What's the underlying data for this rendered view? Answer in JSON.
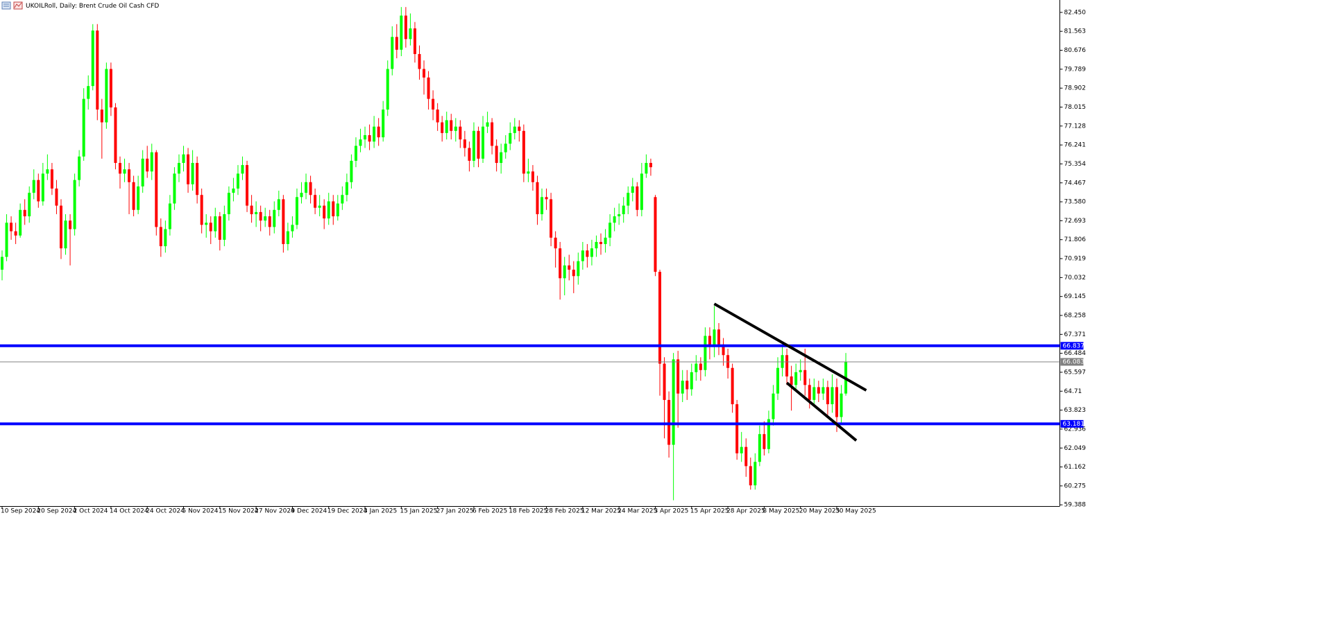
{
  "chart_data": {
    "type": "candlestick",
    "title": "UKOILRoll, Daily:  Brent Crude Oil Cash CFD",
    "up_color": "#00ff00",
    "down_color": "#ff0000",
    "ylim": [
      59.33,
      83.03
    ],
    "yticks": [
      {
        "value": 82.45,
        "label": "82.450"
      },
      81.563,
      80.676,
      79.789,
      78.902,
      78.015,
      77.128,
      76.241,
      75.354,
      74.467,
      {
        "value": 73.58,
        "label": "73.580"
      },
      72.693,
      71.806,
      70.919,
      70.032,
      69.145,
      68.258,
      67.371,
      66.484,
      65.597,
      64.71,
      63.823,
      62.936,
      62.049,
      61.162,
      60.275,
      59.388
    ],
    "categories": [
      "10 Sep 2024",
      null,
      null,
      null,
      null,
      null,
      null,
      null,
      "20 Sep 2024",
      null,
      null,
      null,
      null,
      null,
      null,
      null,
      "2 Oct 2024",
      null,
      null,
      null,
      null,
      null,
      null,
      null,
      "14 Oct 2024",
      null,
      null,
      null,
      null,
      null,
      null,
      null,
      "24 Oct 2024",
      null,
      null,
      null,
      null,
      null,
      null,
      null,
      "5 Nov 2024",
      null,
      null,
      null,
      null,
      null,
      null,
      null,
      "15 Nov 2024",
      null,
      null,
      null,
      null,
      null,
      null,
      null,
      "27 Nov 2024",
      null,
      null,
      null,
      null,
      null,
      null,
      null,
      "9 Dec 2024",
      null,
      null,
      null,
      null,
      null,
      null,
      null,
      "19 Dec 2024",
      null,
      null,
      null,
      null,
      null,
      null,
      null,
      "3 Jan 2025",
      null,
      null,
      null,
      null,
      null,
      null,
      null,
      "15 Jan 2025",
      null,
      null,
      null,
      null,
      null,
      null,
      null,
      "27 Jan 2025",
      null,
      null,
      null,
      null,
      null,
      null,
      null,
      "6 Feb 2025",
      null,
      null,
      null,
      null,
      null,
      null,
      null,
      "18 Feb 2025",
      null,
      null,
      null,
      null,
      null,
      null,
      null,
      "28 Feb 2025",
      null,
      null,
      null,
      null,
      null,
      null,
      null,
      "12 Mar 2025",
      null,
      null,
      null,
      null,
      null,
      null,
      null,
      "24 Mar 2025",
      null,
      null,
      null,
      null,
      null,
      null,
      null,
      "3 Apr 2025",
      null,
      null,
      null,
      null,
      null,
      null,
      null,
      "15 Apr 2025",
      null,
      null,
      null,
      null,
      null,
      null,
      null,
      "28 Apr 2025",
      null,
      null,
      null,
      null,
      null,
      null,
      null,
      "8 May 2025",
      null,
      null,
      null,
      null,
      null,
      null,
      null,
      "20 May 2025",
      null,
      null,
      null,
      null,
      null,
      null,
      null,
      "30 May 2025",
      null,
      null
    ],
    "open": [
      70.4,
      71.0,
      72.6,
      72.2,
      72.0,
      73.2,
      72.9,
      74.0,
      74.6,
      73.6,
      74.9,
      75.1,
      74.2,
      73.4,
      71.4,
      72.7,
      72.3,
      74.6,
      75.7,
      78.4,
      79.0,
      81.6,
      77.9,
      77.3,
      79.8,
      78.0,
      75.4,
      74.9,
      75.1,
      74.5,
      73.2,
      74.3,
      75.6,
      75.0,
      75.9,
      72.4,
      71.5,
      72.3,
      73.5,
      74.9,
      75.4,
      75.8,
      74.4,
      75.4,
      73.9,
      72.5,
      72.6,
      72.2,
      72.9,
      71.8,
      73.0,
      74.0,
      74.2,
      74.9,
      75.3,
      73.4,
      73.0,
      73.1,
      72.7,
      72.9,
      72.4,
      73.2,
      73.7,
      71.6,
      72.2,
      72.5,
      73.8,
      74.0,
      74.5,
      73.9,
      73.3,
      73.4,
      72.8,
      73.6,
      72.9,
      73.5,
      73.9,
      74.5,
      75.5,
      76.2,
      76.5,
      76.7,
      76.4,
      77.1,
      76.6,
      77.9,
      79.8,
      81.3,
      80.7,
      82.3,
      81.2,
      81.7,
      80.5,
      79.8,
      79.4,
      78.4,
      77.9,
      77.3,
      76.8,
      77.4,
      76.9,
      77.1,
      76.5,
      76.1,
      75.5,
      76.9,
      75.6,
      77.1,
      77.3,
      76.2,
      75.4,
      75.9,
      76.3,
      76.8,
      77.1,
      76.9,
      74.9,
      75.0,
      74.5,
      73.0,
      73.8,
      73.7,
      71.9,
      71.4,
      70.0,
      70.6,
      70.4,
      70.1,
      70.8,
      71.3,
      71.0,
      71.4,
      71.7,
      71.6,
      71.9,
      72.6,
      72.9,
      73.0,
      73.4,
      74.0,
      74.3,
      73.2,
      74.9,
      75.4,
      73.8,
      70.3,
      66.0,
      64.3,
      62.2,
      66.2,
      64.6,
      65.2,
      64.8,
      65.6,
      66.0,
      65.7,
      67.3,
      66.8,
      67.6,
      66.9,
      66.4,
      65.8,
      64.1,
      61.8,
      62.1,
      61.2,
      60.3,
      61.4,
      62.7,
      62.0,
      63.4,
      64.6,
      65.8,
      66.4,
      65.4,
      65.0,
      65.6,
      65.7,
      65.0,
      64.3,
      64.9,
      64.6,
      64.9,
      64.1,
      64.9,
      63.5,
      64.6
    ],
    "high": [
      71.3,
      73.0,
      72.9,
      72.6,
      73.5,
      73.7,
      74.3,
      75.1,
      74.9,
      75.4,
      75.8,
      75.4,
      74.6,
      73.7,
      73.0,
      73.0,
      74.9,
      76.0,
      78.9,
      79.5,
      81.9,
      81.9,
      78.4,
      80.1,
      80.1,
      78.2,
      75.7,
      75.6,
      75.4,
      74.8,
      74.8,
      76.0,
      76.2,
      76.3,
      76.0,
      72.8,
      72.7,
      73.9,
      75.2,
      75.8,
      76.2,
      76.1,
      76.0,
      75.7,
      74.2,
      73.0,
      72.9,
      73.3,
      73.1,
      73.4,
      74.3,
      74.7,
      75.3,
      75.7,
      75.5,
      73.9,
      73.6,
      73.4,
      73.3,
      73.2,
      73.6,
      74.1,
      73.9,
      72.6,
      72.9,
      74.2,
      74.5,
      74.9,
      74.8,
      74.2,
      73.9,
      73.7,
      74.0,
      73.9,
      73.9,
      74.3,
      74.9,
      75.8,
      76.6,
      77.0,
      77.1,
      77.2,
      77.6,
      77.5,
      78.3,
      80.2,
      81.8,
      81.9,
      82.7,
      82.7,
      82.4,
      82.0,
      80.9,
      80.2,
      79.7,
      78.8,
      78.2,
      77.6,
      77.8,
      77.7,
      77.5,
      77.4,
      76.9,
      76.4,
      77.3,
      77.1,
      77.6,
      77.8,
      77.5,
      76.5,
      76.3,
      76.7,
      77.3,
      77.5,
      77.4,
      77.2,
      75.6,
      75.3,
      74.8,
      74.2,
      74.2,
      74.0,
      72.2,
      71.7,
      71.0,
      71.1,
      70.8,
      71.2,
      71.7,
      71.6,
      71.8,
      72.0,
      72.1,
      72.3,
      73.0,
      73.3,
      73.5,
      73.8,
      74.3,
      74.7,
      74.5,
      75.4,
      75.8,
      75.6,
      73.9,
      70.4,
      66.3,
      64.7,
      66.5,
      66.6,
      65.7,
      65.7,
      66.0,
      66.4,
      66.3,
      67.7,
      67.7,
      68.7,
      67.9,
      67.2,
      66.7,
      66.0,
      64.3,
      62.8,
      62.5,
      61.6,
      61.8,
      63.1,
      63.3,
      63.8,
      65.0,
      66.3,
      66.9,
      66.7,
      65.9,
      66.0,
      66.2,
      66.7,
      65.3,
      65.3,
      65.2,
      65.3,
      65.2,
      65.5,
      65.3,
      65.0,
      66.5
    ],
    "low": [
      69.9,
      70.8,
      71.8,
      71.6,
      71.9,
      72.5,
      72.6,
      73.7,
      73.3,
      73.4,
      74.6,
      73.9,
      73.0,
      70.9,
      71.1,
      70.6,
      72.0,
      74.3,
      75.5,
      77.9,
      78.8,
      77.4,
      75.6,
      77.0,
      77.6,
      75.1,
      74.2,
      74.5,
      73.0,
      72.9,
      73.0,
      74.0,
      74.7,
      74.6,
      72.0,
      71.0,
      71.2,
      72.0,
      73.2,
      74.5,
      75.0,
      74.0,
      74.1,
      73.5,
      72.1,
      71.9,
      71.6,
      71.9,
      71.3,
      71.5,
      72.7,
      73.6,
      73.9,
      74.6,
      73.1,
      72.6,
      72.4,
      72.2,
      72.4,
      72.0,
      72.1,
      72.9,
      71.2,
      71.3,
      71.9,
      72.3,
      73.5,
      73.7,
      73.5,
      73.0,
      72.9,
      72.3,
      72.5,
      72.5,
      72.7,
      73.2,
      73.6,
      74.2,
      75.2,
      75.9,
      76.1,
      76.0,
      76.1,
      76.2,
      76.4,
      77.6,
      79.5,
      80.3,
      80.4,
      80.8,
      80.9,
      80.1,
      79.3,
      78.6,
      77.9,
      77.4,
      76.9,
      76.4,
      76.5,
      76.5,
      76.4,
      76.1,
      75.7,
      75.0,
      75.2,
      75.2,
      75.4,
      76.8,
      75.8,
      75.0,
      74.9,
      75.6,
      76.0,
      76.5,
      76.4,
      74.5,
      74.5,
      74.1,
      72.5,
      72.7,
      73.2,
      71.5,
      70.5,
      69.0,
      69.2,
      69.9,
      69.3,
      69.7,
      70.4,
      70.5,
      70.6,
      71.0,
      71.1,
      71.2,
      71.5,
      72.2,
      72.5,
      72.6,
      73.0,
      73.6,
      72.9,
      72.9,
      74.7,
      74.8,
      70.1,
      64.5,
      62.5,
      61.6,
      59.6,
      63.0,
      64.2,
      64.3,
      64.5,
      65.2,
      65.2,
      65.4,
      66.2,
      66.3,
      66.4,
      65.9,
      65.3,
      63.7,
      61.5,
      61.4,
      60.7,
      60.1,
      60.1,
      61.2,
      61.7,
      61.8,
      63.1,
      64.3,
      65.4,
      65.0,
      63.8,
      64.8,
      65.2,
      64.5,
      63.9,
      64.1,
      64.2,
      64.3,
      63.6,
      63.7,
      62.8,
      63.2,
      64.5
    ],
    "close": [
      71.0,
      72.6,
      72.2,
      72.0,
      73.2,
      72.9,
      74.0,
      74.6,
      73.6,
      74.9,
      75.1,
      74.2,
      73.4,
      71.4,
      72.7,
      72.3,
      74.6,
      75.7,
      78.4,
      79.0,
      81.6,
      77.9,
      77.3,
      79.8,
      78.0,
      75.4,
      74.9,
      75.1,
      74.5,
      73.2,
      74.3,
      75.6,
      75.0,
      75.9,
      72.4,
      71.5,
      72.3,
      73.5,
      74.9,
      75.4,
      75.8,
      74.4,
      75.4,
      73.9,
      72.5,
      72.6,
      72.2,
      72.9,
      71.8,
      73.0,
      74.0,
      74.2,
      74.9,
      75.3,
      73.4,
      73.0,
      73.1,
      72.7,
      72.9,
      72.4,
      73.2,
      73.7,
      71.6,
      72.2,
      72.5,
      73.8,
      74.0,
      74.5,
      73.9,
      73.3,
      73.4,
      72.8,
      73.6,
      72.9,
      73.5,
      73.9,
      74.5,
      75.5,
      76.2,
      76.5,
      76.7,
      76.4,
      77.1,
      76.6,
      77.9,
      79.8,
      81.3,
      80.7,
      82.3,
      81.2,
      81.7,
      80.5,
      79.8,
      79.4,
      78.4,
      77.9,
      77.3,
      76.8,
      77.4,
      76.9,
      77.1,
      76.5,
      76.1,
      75.5,
      76.9,
      75.6,
      77.1,
      77.3,
      76.2,
      75.4,
      75.9,
      76.3,
      76.8,
      77.1,
      76.9,
      74.9,
      75.0,
      74.5,
      73.0,
      73.8,
      73.7,
      71.9,
      71.4,
      70.0,
      70.6,
      70.4,
      70.1,
      70.8,
      71.3,
      71.0,
      71.4,
      71.7,
      71.6,
      71.9,
      72.6,
      72.9,
      73.0,
      73.4,
      74.0,
      74.3,
      73.2,
      74.9,
      75.4,
      75.2,
      70.3,
      66.0,
      64.3,
      62.2,
      66.2,
      64.6,
      65.2,
      64.8,
      65.6,
      66.0,
      65.7,
      67.3,
      66.8,
      67.6,
      66.9,
      66.4,
      65.8,
      64.1,
      61.8,
      62.1,
      61.2,
      60.3,
      61.4,
      62.7,
      62.0,
      63.4,
      64.6,
      65.8,
      66.4,
      65.4,
      65.0,
      65.6,
      65.7,
      65.0,
      64.3,
      64.9,
      64.6,
      64.9,
      64.1,
      64.9,
      63.5,
      64.6,
      66.1
    ],
    "levels": [
      {
        "value": 66.837,
        "color": "#0000ff"
      },
      {
        "value": 63.181,
        "color": "#0000ff"
      }
    ],
    "last_price": {
      "value": 66.083,
      "color": "#808080"
    },
    "trendlines": [
      {
        "x": [
          157,
          190.5
        ],
        "y": [
          68.8,
          64.75
        ],
        "color": "#000000"
      },
      {
        "x": [
          173,
          188.3
        ],
        "y": [
          65.1,
          62.4
        ],
        "color": "#000000"
      }
    ]
  }
}
